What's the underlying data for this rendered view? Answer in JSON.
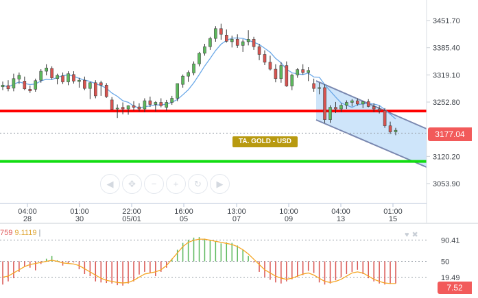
{
  "chart_data": [
    {
      "type": "candlestick",
      "instrument_label": "TA. GOLD - USD",
      "current_price": 3177.04,
      "current_price_label": "3177.04",
      "y_ticks": [
        3451.7,
        3385.4,
        3319.1,
        3252.8,
        3120.2,
        3053.9
      ],
      "y_tick_labels": [
        "3451.70",
        "3385.40",
        "3319.10",
        "3252.80",
        "3120.20",
        "3053.90"
      ],
      "ylim": [
        3010,
        3490
      ],
      "x_ticks": [
        {
          "time": "04:00",
          "date": "28"
        },
        {
          "time": "01:00",
          "date": "30"
        },
        {
          "time": "22:00",
          "date": "05/01"
        },
        {
          "time": "16:00",
          "date": "05"
        },
        {
          "time": "13:00",
          "date": "07"
        },
        {
          "time": "10:00",
          "date": "09"
        },
        {
          "time": "04:00",
          "date": "13"
        },
        {
          "time": "01:00",
          "date": "15"
        }
      ],
      "support_lines": [
        {
          "price": 3231,
          "color": "#ff0000"
        },
        {
          "price": 3108,
          "color": "#11dd11"
        }
      ],
      "moving_average_color": "#6aa8e8",
      "candles": [
        [
          3290,
          3303,
          3282,
          3294
        ],
        [
          3293,
          3306,
          3279,
          3285
        ],
        [
          3287,
          3322,
          3279,
          3310
        ],
        [
          3309,
          3325,
          3297,
          3318
        ],
        [
          3304,
          3315,
          3282,
          3285
        ],
        [
          3284,
          3293,
          3275,
          3280
        ],
        [
          3284,
          3310,
          3278,
          3305
        ],
        [
          3306,
          3333,
          3300,
          3328
        ],
        [
          3328,
          3345,
          3318,
          3336
        ],
        [
          3335,
          3340,
          3308,
          3312
        ],
        [
          3310,
          3322,
          3296,
          3318
        ],
        [
          3317,
          3325,
          3297,
          3302
        ],
        [
          3302,
          3328,
          3294,
          3322
        ],
        [
          3320,
          3328,
          3298,
          3304
        ],
        [
          3303,
          3312,
          3288,
          3306
        ],
        [
          3306,
          3315,
          3282,
          3286
        ],
        [
          3286,
          3302,
          3260,
          3300
        ],
        [
          3300,
          3306,
          3262,
          3268
        ],
        [
          3300,
          3305,
          3268,
          3294
        ],
        [
          3294,
          3299,
          3263,
          3266
        ],
        [
          3258,
          3265,
          3235,
          3235
        ],
        [
          3236,
          3247,
          3214,
          3238
        ],
        [
          3240,
          3252,
          3223,
          3236
        ],
        [
          3236,
          3245,
          3222,
          3244
        ],
        [
          3244,
          3255,
          3232,
          3240
        ],
        [
          3241,
          3250,
          3230,
          3236
        ],
        [
          3236,
          3262,
          3228,
          3256
        ],
        [
          3256,
          3266,
          3241,
          3247
        ],
        [
          3247,
          3255,
          3230,
          3252
        ],
        [
          3252,
          3262,
          3240,
          3244
        ],
        [
          3240,
          3258,
          3232,
          3252
        ],
        [
          3252,
          3268,
          3246,
          3262
        ],
        [
          3262,
          3298,
          3255,
          3298
        ],
        [
          3296,
          3320,
          3288,
          3316
        ],
        [
          3316,
          3330,
          3302,
          3325
        ],
        [
          3324,
          3352,
          3318,
          3346
        ],
        [
          3346,
          3375,
          3340,
          3372
        ],
        [
          3372,
          3395,
          3366,
          3388
        ],
        [
          3388,
          3412,
          3380,
          3408
        ],
        [
          3408,
          3438,
          3400,
          3432
        ],
        [
          3432,
          3444,
          3405,
          3418
        ],
        [
          3416,
          3430,
          3398,
          3401
        ],
        [
          3400,
          3415,
          3386,
          3406
        ],
        [
          3406,
          3418,
          3385,
          3391
        ],
        [
          3391,
          3406,
          3375,
          3400
        ],
        [
          3400,
          3428,
          3391,
          3406
        ],
        [
          3406,
          3412,
          3380,
          3388
        ],
        [
          3388,
          3395,
          3355,
          3369
        ],
        [
          3369,
          3379,
          3343,
          3350
        ],
        [
          3350,
          3366,
          3330,
          3333
        ],
        [
          3333,
          3345,
          3301,
          3310
        ],
        [
          3310,
          3350,
          3300,
          3342
        ],
        [
          3342,
          3352,
          3290,
          3292
        ],
        [
          3292,
          3322,
          3282,
          3319
        ],
        [
          3319,
          3336,
          3312,
          3332
        ],
        [
          3332,
          3345,
          3320,
          3325
        ],
        [
          3325,
          3338,
          3304,
          3330
        ],
        [
          3298,
          3310,
          3278,
          3286
        ],
        [
          3286,
          3300,
          3272,
          3288
        ],
        [
          3288,
          3296,
          3202,
          3210
        ],
        [
          3210,
          3245,
          3202,
          3240
        ],
        [
          3240,
          3253,
          3226,
          3236
        ],
        [
          3236,
          3250,
          3228,
          3245
        ],
        [
          3245,
          3257,
          3236,
          3252
        ],
        [
          3252,
          3260,
          3242,
          3256
        ],
        [
          3256,
          3262,
          3244,
          3248
        ],
        [
          3248,
          3256,
          3238,
          3254
        ],
        [
          3254,
          3260,
          3240,
          3242
        ],
        [
          3242,
          3250,
          3228,
          3236
        ],
        [
          3236,
          3244,
          3225,
          3232
        ],
        [
          3232,
          3238,
          3190,
          3195
        ],
        [
          3195,
          3205,
          3175,
          3180
        ],
        [
          3180,
          3190,
          3172,
          3184
        ]
      ],
      "indicator": {
        "values_label": "759",
        "signal_label": "9.1119",
        "y_tick_labels": [
          "90.41",
          "50",
          "19.49"
        ],
        "levels": [
          90.41,
          50,
          19.49
        ],
        "current_label": "7.52",
        "histogram": [
          6,
          12,
          18,
          30,
          40,
          38,
          33,
          45,
          55,
          60,
          52,
          42,
          46,
          48,
          35,
          26,
          22,
          12,
          10,
          9,
          8,
          5,
          4,
          8,
          12,
          25,
          30,
          28,
          22,
          30,
          38,
          55,
          72,
          85,
          91,
          95,
          96,
          93,
          90,
          88,
          84,
          86,
          85,
          80,
          72,
          60,
          48,
          30,
          20,
          15,
          10,
          8,
          12,
          16,
          20,
          24,
          32,
          28,
          10,
          6,
          8,
          14,
          20,
          26,
          30,
          34,
          26,
          18,
          12,
          8,
          6,
          7,
          8
        ],
        "signal": [
          20,
          22,
          28,
          34,
          40,
          44,
          46,
          48,
          50,
          52,
          50,
          47,
          46,
          45,
          42,
          36,
          30,
          24,
          18,
          14,
          12,
          10,
          9,
          10,
          14,
          20,
          26,
          28,
          30,
          34,
          42,
          54,
          66,
          78,
          86,
          90,
          92,
          92,
          90,
          88,
          86,
          84,
          82,
          78,
          72,
          64,
          54,
          44,
          34,
          28,
          22,
          18,
          16,
          18,
          22,
          26,
          28,
          24,
          18,
          12,
          10,
          12,
          16,
          22,
          28,
          30,
          28,
          22,
          16,
          12,
          9,
          8,
          8
        ]
      }
    }
  ],
  "nav_buttons": [
    "scroll-left",
    "pan",
    "zoom-out",
    "zoom-in",
    "reset",
    "scroll-right"
  ]
}
